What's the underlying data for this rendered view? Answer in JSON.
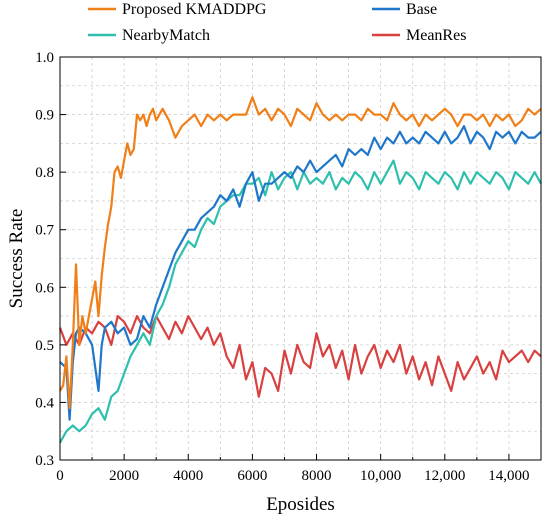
{
  "chart_data": {
    "type": "line",
    "title": "",
    "xlabel": "Eposides",
    "ylabel": "Success Rate",
    "xlim": [
      0,
      15000
    ],
    "ylim": [
      0.3,
      1.0
    ],
    "xticks": [
      0,
      2000,
      4000,
      6000,
      8000,
      10000,
      12000,
      14000
    ],
    "xtick_labels": [
      "0",
      "2000",
      "4000",
      "6000",
      "8000",
      "10,000",
      "12,000",
      "14,000"
    ],
    "yticks": [
      0.3,
      0.4,
      0.5,
      0.6,
      0.7,
      0.8,
      0.9,
      1.0
    ],
    "ytick_labels": [
      "0.3",
      "0.4",
      "0.5",
      "0.6",
      "0.7",
      "0.8",
      "0.9",
      "1.0"
    ],
    "grid": true,
    "legend": "top, above plot, two columns",
    "series": [
      {
        "name": "Proposed KMADDPG",
        "color": "#f07f17",
        "x": [
          0,
          100,
          200,
          300,
          400,
          500,
          600,
          700,
          800,
          900,
          1000,
          1100,
          1200,
          1300,
          1400,
          1500,
          1600,
          1700,
          1800,
          1900,
          2000,
          2100,
          2200,
          2300,
          2400,
          2500,
          2600,
          2700,
          2800,
          2900,
          3000,
          3200,
          3400,
          3600,
          3800,
          4000,
          4200,
          4400,
          4600,
          4800,
          5000,
          5200,
          5400,
          5600,
          5800,
          6000,
          6200,
          6400,
          6600,
          6800,
          7000,
          7200,
          7400,
          7600,
          7800,
          8000,
          8200,
          8400,
          8600,
          8800,
          9000,
          9200,
          9400,
          9600,
          9800,
          10000,
          10200,
          10400,
          10600,
          10800,
          11000,
          11200,
          11400,
          11600,
          11800,
          12000,
          12200,
          12400,
          12600,
          12800,
          13000,
          13200,
          13400,
          13600,
          13800,
          14000,
          14200,
          14400,
          14600,
          14800,
          15000
        ],
        "y": [
          0.42,
          0.43,
          0.48,
          0.39,
          0.5,
          0.64,
          0.5,
          0.55,
          0.52,
          0.55,
          0.58,
          0.61,
          0.55,
          0.62,
          0.67,
          0.71,
          0.74,
          0.8,
          0.81,
          0.79,
          0.82,
          0.85,
          0.83,
          0.84,
          0.9,
          0.89,
          0.9,
          0.88,
          0.9,
          0.91,
          0.89,
          0.91,
          0.89,
          0.86,
          0.88,
          0.89,
          0.9,
          0.88,
          0.9,
          0.89,
          0.9,
          0.89,
          0.9,
          0.9,
          0.9,
          0.93,
          0.9,
          0.91,
          0.89,
          0.91,
          0.9,
          0.88,
          0.91,
          0.9,
          0.89,
          0.92,
          0.9,
          0.89,
          0.9,
          0.89,
          0.9,
          0.9,
          0.89,
          0.91,
          0.9,
          0.9,
          0.89,
          0.92,
          0.9,
          0.89,
          0.9,
          0.88,
          0.9,
          0.89,
          0.9,
          0.91,
          0.9,
          0.88,
          0.9,
          0.9,
          0.89,
          0.9,
          0.88,
          0.9,
          0.89,
          0.9,
          0.88,
          0.89,
          0.91,
          0.9,
          0.91
        ]
      },
      {
        "name": "Base",
        "color": "#1f77c9",
        "x": [
          0,
          200,
          300,
          400,
          500,
          600,
          800,
          1000,
          1200,
          1300,
          1400,
          1600,
          1800,
          2000,
          2200,
          2400,
          2600,
          2800,
          3000,
          3200,
          3400,
          3600,
          3800,
          4000,
          4200,
          4400,
          4600,
          4800,
          5000,
          5200,
          5400,
          5600,
          5800,
          6000,
          6200,
          6400,
          6600,
          6800,
          7000,
          7200,
          7400,
          7600,
          7800,
          8000,
          8200,
          8400,
          8600,
          8800,
          9000,
          9200,
          9400,
          9600,
          9800,
          10000,
          10200,
          10400,
          10600,
          10800,
          11000,
          11200,
          11400,
          11600,
          11800,
          12000,
          12200,
          12400,
          12600,
          12800,
          13000,
          13200,
          13400,
          13600,
          13800,
          14000,
          14200,
          14400,
          14600,
          14800,
          15000
        ],
        "y": [
          0.47,
          0.46,
          0.37,
          0.47,
          0.52,
          0.53,
          0.52,
          0.5,
          0.42,
          0.5,
          0.53,
          0.54,
          0.52,
          0.53,
          0.5,
          0.51,
          0.55,
          0.53,
          0.57,
          0.6,
          0.63,
          0.66,
          0.68,
          0.7,
          0.7,
          0.72,
          0.73,
          0.74,
          0.76,
          0.75,
          0.77,
          0.74,
          0.78,
          0.8,
          0.75,
          0.78,
          0.78,
          0.79,
          0.8,
          0.79,
          0.81,
          0.8,
          0.82,
          0.8,
          0.81,
          0.82,
          0.83,
          0.81,
          0.84,
          0.83,
          0.84,
          0.83,
          0.86,
          0.84,
          0.86,
          0.85,
          0.87,
          0.85,
          0.86,
          0.85,
          0.87,
          0.86,
          0.85,
          0.87,
          0.85,
          0.86,
          0.88,
          0.85,
          0.87,
          0.86,
          0.84,
          0.87,
          0.86,
          0.87,
          0.85,
          0.87,
          0.86,
          0.86,
          0.87
        ]
      },
      {
        "name": "NearbyMatch",
        "color": "#2ebfad",
        "x": [
          0,
          200,
          400,
          600,
          800,
          1000,
          1200,
          1400,
          1600,
          1800,
          2000,
          2200,
          2400,
          2600,
          2800,
          3000,
          3200,
          3400,
          3600,
          3800,
          4000,
          4200,
          4400,
          4600,
          4800,
          5000,
          5200,
          5400,
          5600,
          5800,
          6000,
          6200,
          6400,
          6600,
          6800,
          7000,
          7200,
          7400,
          7600,
          7800,
          8000,
          8200,
          8400,
          8600,
          8800,
          9000,
          9200,
          9400,
          9600,
          9800,
          10000,
          10200,
          10400,
          10600,
          10800,
          11000,
          11200,
          11400,
          11600,
          11800,
          12000,
          12200,
          12400,
          12600,
          12800,
          13000,
          13200,
          13400,
          13600,
          13800,
          14000,
          14200,
          14400,
          14600,
          14800,
          15000
        ],
        "y": [
          0.33,
          0.35,
          0.36,
          0.35,
          0.36,
          0.38,
          0.39,
          0.37,
          0.41,
          0.42,
          0.45,
          0.48,
          0.5,
          0.52,
          0.5,
          0.55,
          0.57,
          0.6,
          0.64,
          0.66,
          0.68,
          0.67,
          0.7,
          0.72,
          0.71,
          0.74,
          0.75,
          0.76,
          0.76,
          0.78,
          0.78,
          0.79,
          0.76,
          0.8,
          0.77,
          0.79,
          0.8,
          0.77,
          0.8,
          0.78,
          0.79,
          0.78,
          0.8,
          0.77,
          0.79,
          0.78,
          0.8,
          0.79,
          0.77,
          0.8,
          0.78,
          0.8,
          0.82,
          0.78,
          0.8,
          0.79,
          0.77,
          0.8,
          0.79,
          0.78,
          0.8,
          0.79,
          0.77,
          0.8,
          0.78,
          0.8,
          0.79,
          0.78,
          0.8,
          0.79,
          0.77,
          0.8,
          0.79,
          0.78,
          0.8,
          0.78
        ]
      },
      {
        "name": "MeanRes",
        "color": "#d94040",
        "x": [
          0,
          200,
          400,
          600,
          800,
          1000,
          1200,
          1400,
          1600,
          1800,
          2000,
          2200,
          2400,
          2600,
          2800,
          3000,
          3200,
          3400,
          3600,
          3800,
          4000,
          4200,
          4400,
          4600,
          4800,
          5000,
          5200,
          5400,
          5600,
          5800,
          6000,
          6200,
          6400,
          6600,
          6800,
          7000,
          7200,
          7400,
          7600,
          7800,
          8000,
          8200,
          8400,
          8600,
          8800,
          9000,
          9200,
          9400,
          9600,
          9800,
          10000,
          10200,
          10400,
          10600,
          10800,
          11000,
          11200,
          11400,
          11600,
          11800,
          12000,
          12200,
          12400,
          12600,
          12800,
          13000,
          13200,
          13400,
          13600,
          13800,
          14000,
          14200,
          14400,
          14600,
          14800,
          15000
        ],
        "y": [
          0.53,
          0.5,
          0.52,
          0.5,
          0.53,
          0.52,
          0.54,
          0.53,
          0.5,
          0.55,
          0.54,
          0.52,
          0.55,
          0.53,
          0.52,
          0.55,
          0.53,
          0.51,
          0.54,
          0.52,
          0.55,
          0.53,
          0.51,
          0.53,
          0.5,
          0.52,
          0.48,
          0.46,
          0.5,
          0.44,
          0.47,
          0.41,
          0.46,
          0.45,
          0.42,
          0.49,
          0.45,
          0.5,
          0.47,
          0.46,
          0.52,
          0.48,
          0.5,
          0.46,
          0.49,
          0.44,
          0.5,
          0.45,
          0.48,
          0.5,
          0.46,
          0.49,
          0.47,
          0.5,
          0.45,
          0.48,
          0.44,
          0.47,
          0.43,
          0.48,
          0.45,
          0.42,
          0.47,
          0.44,
          0.46,
          0.48,
          0.45,
          0.47,
          0.44,
          0.49,
          0.47,
          0.48,
          0.49,
          0.47,
          0.49,
          0.48
        ]
      }
    ]
  }
}
